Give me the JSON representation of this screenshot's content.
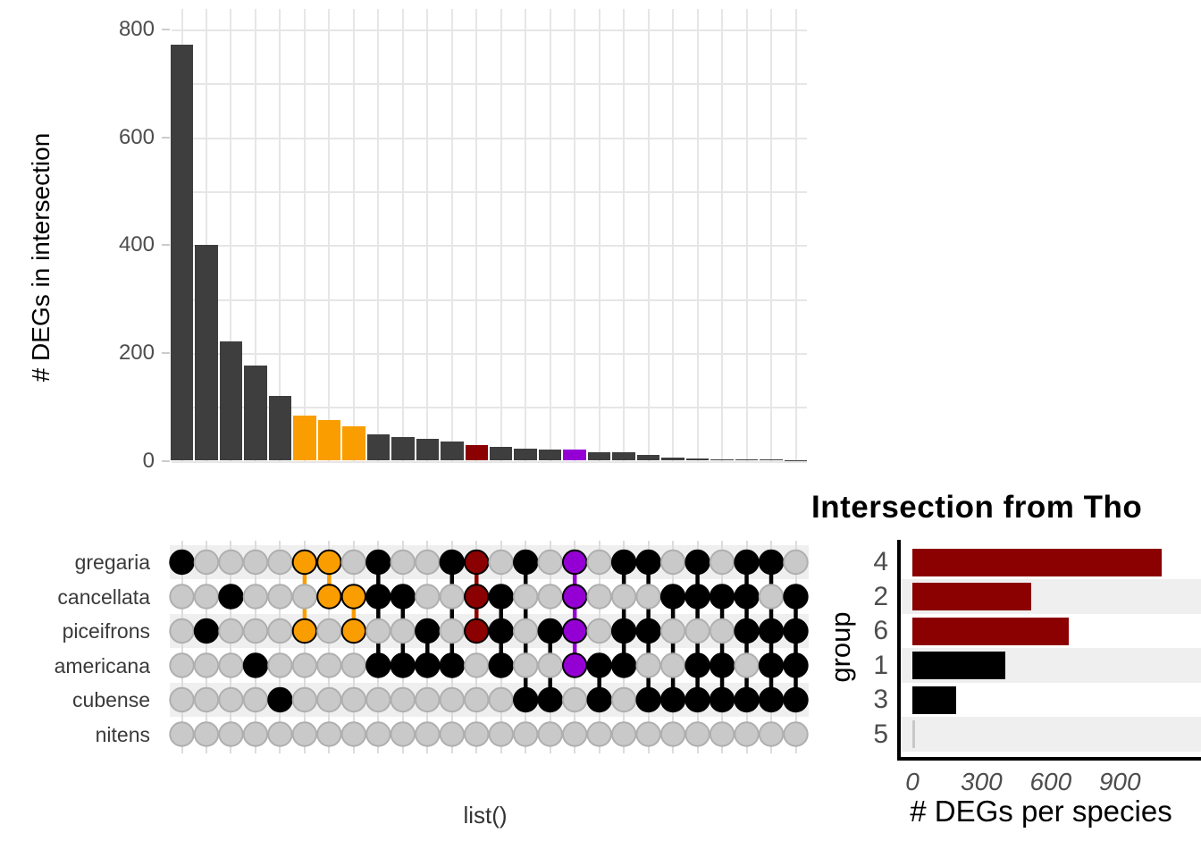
{
  "colors": {
    "bar_default": "#3E3E3E",
    "orange": "#FA9D00",
    "dark_red": "#8B0000",
    "purple": "#9400D3",
    "black": "#000000",
    "inactive_dot_fill": "#C9C9C9",
    "inactive_dot_stroke": "#AFAFAF",
    "stripe": "#EFEFEF",
    "gridline": "#E6E6E6",
    "axis_text": "#4D4D4D",
    "tiny_bar_gray": "#C8C8C8"
  },
  "chart_data": [
    {
      "type": "bar",
      "panel": "upset-intersection-sizes",
      "ylabel": "# DEGs in intersection",
      "xlabel": "list()",
      "yticks": [
        0,
        200,
        400,
        600,
        800
      ],
      "ytick_labels": [
        "0",
        "200",
        "400",
        "600",
        "800"
      ],
      "ylim": [
        0,
        838
      ],
      "grid": true,
      "set_rows": [
        "gregaria",
        "cancellata",
        "piceifrons",
        "americana",
        "cubense",
        "nitens"
      ],
      "matrix_stripe_row_indices": [
        0,
        2,
        4
      ],
      "intersections": [
        {
          "sets": [
            "gregaria"
          ],
          "value": 772,
          "color": "#3E3E3E"
        },
        {
          "sets": [
            "piceifrons"
          ],
          "value": 400,
          "color": "#3E3E3E"
        },
        {
          "sets": [
            "cancellata"
          ],
          "value": 222,
          "color": "#3E3E3E"
        },
        {
          "sets": [
            "americana"
          ],
          "value": 176,
          "color": "#3E3E3E"
        },
        {
          "sets": [
            "cubense"
          ],
          "value": 120,
          "color": "#3E3E3E"
        },
        {
          "sets": [
            "gregaria",
            "piceifrons"
          ],
          "value": 84,
          "color": "#FA9D00"
        },
        {
          "sets": [
            "gregaria",
            "cancellata"
          ],
          "value": 75,
          "color": "#FA9D00"
        },
        {
          "sets": [
            "cancellata",
            "piceifrons"
          ],
          "value": 64,
          "color": "#FA9D00"
        },
        {
          "sets": [
            "gregaria",
            "cancellata",
            "americana"
          ],
          "value": 49,
          "color": "#3E3E3E"
        },
        {
          "sets": [
            "cancellata",
            "americana"
          ],
          "value": 44,
          "color": "#3E3E3E"
        },
        {
          "sets": [
            "piceifrons",
            "americana"
          ],
          "value": 40,
          "color": "#3E3E3E"
        },
        {
          "sets": [
            "gregaria",
            "americana"
          ],
          "value": 36,
          "color": "#3E3E3E"
        },
        {
          "sets": [
            "gregaria",
            "cancellata",
            "piceifrons"
          ],
          "value": 29,
          "color": "#8B0000"
        },
        {
          "sets": [
            "cancellata",
            "piceifrons",
            "americana"
          ],
          "value": 26,
          "color": "#3E3E3E"
        },
        {
          "sets": [
            "gregaria",
            "cubense"
          ],
          "value": 22,
          "color": "#3E3E3E"
        },
        {
          "sets": [
            "piceifrons",
            "cubense"
          ],
          "value": 21,
          "color": "#3E3E3E"
        },
        {
          "sets": [
            "gregaria",
            "cancellata",
            "piceifrons",
            "americana"
          ],
          "value": 21,
          "color": "#9400D3"
        },
        {
          "sets": [
            "americana",
            "cubense"
          ],
          "value": 16,
          "color": "#3E3E3E"
        },
        {
          "sets": [
            "gregaria",
            "piceifrons",
            "americana"
          ],
          "value": 15,
          "color": "#3E3E3E"
        },
        {
          "sets": [
            "gregaria",
            "piceifrons",
            "cubense"
          ],
          "value": 10,
          "color": "#3E3E3E"
        },
        {
          "sets": [
            "cancellata",
            "cubense"
          ],
          "value": 6,
          "color": "#3E3E3E"
        },
        {
          "sets": [
            "gregaria",
            "cancellata",
            "americana",
            "cubense"
          ],
          "value": 4,
          "color": "#3E3E3E"
        },
        {
          "sets": [
            "cancellata",
            "americana",
            "cubense"
          ],
          "value": 3,
          "color": "#3E3E3E"
        },
        {
          "sets": [
            "gregaria",
            "cancellata",
            "piceifrons",
            "cubense"
          ],
          "value": 2,
          "color": "#3E3E3E"
        },
        {
          "sets": [
            "gregaria",
            "piceifrons",
            "americana",
            "cubense"
          ],
          "value": 2,
          "color": "#3E3E3E"
        },
        {
          "sets": [
            "cancellata",
            "piceifrons",
            "americana",
            "cubense"
          ],
          "value": 1,
          "color": "#3E3E3E"
        }
      ]
    },
    {
      "type": "bar",
      "orientation": "horizontal",
      "panel": "degs-per-group",
      "title": "Intersection from Tho",
      "ylabel": "group",
      "xlabel": "# DEGs per species",
      "categories": [
        "4",
        "2",
        "6",
        "1",
        "3",
        "5"
      ],
      "values": [
        1080,
        515,
        680,
        405,
        190,
        2
      ],
      "bar_colors": [
        "#8B0000",
        "#8B0000",
        "#8B0000",
        "#000000",
        "#000000",
        "#C8C8C8"
      ],
      "xticks": [
        0,
        300,
        600,
        900
      ],
      "xtick_labels": [
        "0",
        "300",
        "600",
        "900"
      ],
      "xlim": [
        0,
        1290
      ],
      "stripe_row_indices": [
        1,
        3,
        5
      ],
      "legend": "none"
    }
  ]
}
